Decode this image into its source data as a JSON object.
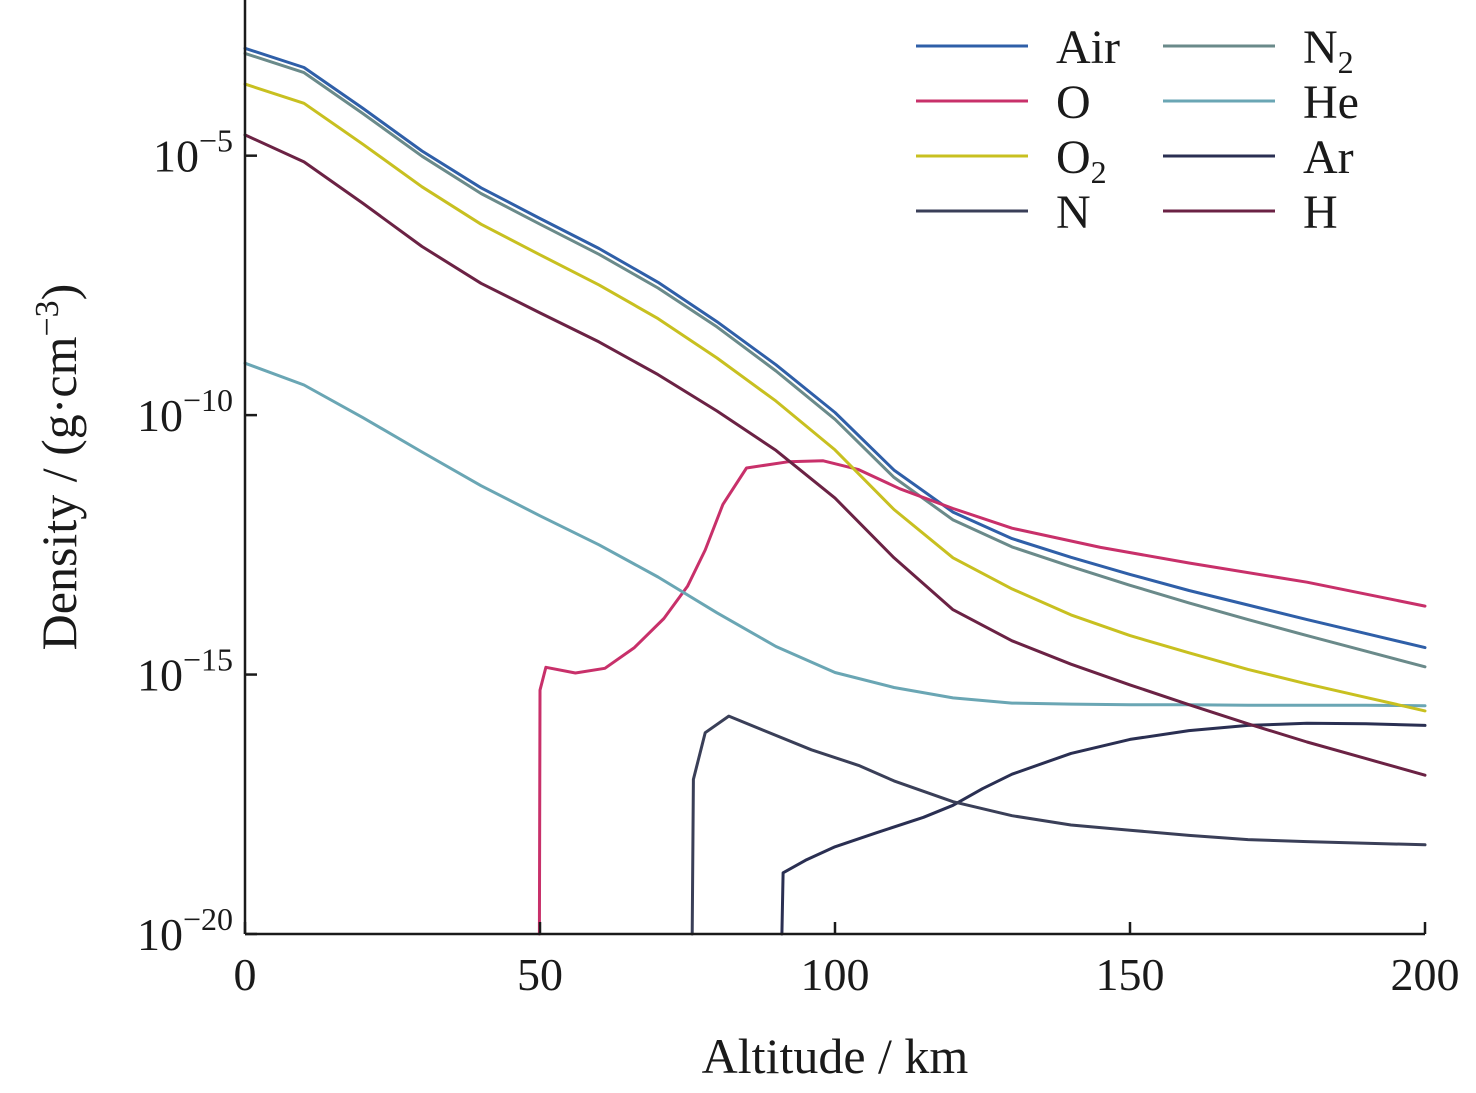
{
  "chart_data": {
    "type": "line",
    "xlabel": "Altitude / km",
    "ylabel": "Density / (g·cm⁻³)",
    "ylabel_parts": {
      "main": "Density / (g·cm",
      "sup": "−3",
      "end": ")"
    },
    "x_scale": "linear",
    "y_scale": "log",
    "xlim": [
      0,
      200
    ],
    "ylim_exponent": [
      -20,
      -2
    ],
    "x_ticks": [
      {
        "value": 0,
        "label": "0"
      },
      {
        "value": 50,
        "label": "50"
      },
      {
        "value": 100,
        "label": "100"
      },
      {
        "value": 150,
        "label": "150"
      },
      {
        "value": 200,
        "label": "200"
      }
    ],
    "y_ticks": [
      {
        "exponent": -5,
        "base": "10",
        "sup": "−5"
      },
      {
        "exponent": -10,
        "base": "10",
        "sup": "−10"
      },
      {
        "exponent": -15,
        "base": "10",
        "sup": "−15"
      },
      {
        "exponent": -20,
        "base": "10",
        "sup": "−20"
      }
    ],
    "grid": false,
    "legend_position": "top-right",
    "series": [
      {
        "name": "Air",
        "label_base": "Air",
        "label_sub": "",
        "color": "#2f5fa8",
        "points": [
          [
            0,
            -2.93
          ],
          [
            10,
            -3.3
          ],
          [
            20,
            -4.09
          ],
          [
            30,
            -4.91
          ],
          [
            40,
            -5.62
          ],
          [
            50,
            -6.21
          ],
          [
            60,
            -6.79
          ],
          [
            70,
            -7.44
          ],
          [
            80,
            -8.2
          ],
          [
            90,
            -9.03
          ],
          [
            100,
            -9.95
          ],
          [
            110,
            -11.06
          ],
          [
            120,
            -11.87
          ],
          [
            130,
            -12.38
          ],
          [
            140,
            -12.74
          ],
          [
            150,
            -13.07
          ],
          [
            160,
            -13.38
          ],
          [
            170,
            -13.66
          ],
          [
            180,
            -13.94
          ],
          [
            190,
            -14.21
          ],
          [
            200,
            -14.48
          ]
        ]
      },
      {
        "name": "N2",
        "label_base": "N",
        "label_sub": "2",
        "color": "#6a8a8a",
        "points": [
          [
            0,
            -3.03
          ],
          [
            10,
            -3.4
          ],
          [
            20,
            -4.19
          ],
          [
            30,
            -5.01
          ],
          [
            40,
            -5.73
          ],
          [
            50,
            -6.32
          ],
          [
            60,
            -6.9
          ],
          [
            70,
            -7.55
          ],
          [
            80,
            -8.3
          ],
          [
            90,
            -9.15
          ],
          [
            100,
            -10.08
          ],
          [
            110,
            -11.2
          ],
          [
            120,
            -12.02
          ],
          [
            130,
            -12.54
          ],
          [
            140,
            -12.92
          ],
          [
            150,
            -13.28
          ],
          [
            160,
            -13.62
          ],
          [
            170,
            -13.94
          ],
          [
            180,
            -14.25
          ],
          [
            190,
            -14.55
          ],
          [
            200,
            -14.85
          ]
        ]
      },
      {
        "name": "O",
        "label_base": "O",
        "label_sub": "",
        "color": "#c8306a",
        "points": [
          [
            49.9,
            -20
          ],
          [
            50,
            -15.3
          ],
          [
            51,
            -14.86
          ],
          [
            56,
            -14.97
          ],
          [
            61,
            -14.88
          ],
          [
            66,
            -14.48
          ],
          [
            71,
            -13.92
          ],
          [
            75,
            -13.3
          ],
          [
            78,
            -12.6
          ],
          [
            81,
            -11.72
          ],
          [
            85,
            -11.02
          ],
          [
            92,
            -10.9
          ],
          [
            98,
            -10.88
          ],
          [
            104,
            -11.05
          ],
          [
            111,
            -11.42
          ],
          [
            120,
            -11.8
          ],
          [
            130,
            -12.18
          ],
          [
            145,
            -12.55
          ],
          [
            160,
            -12.85
          ],
          [
            180,
            -13.22
          ],
          [
            200,
            -13.68
          ]
        ]
      },
      {
        "name": "He",
        "label_base": "He",
        "label_sub": "",
        "color": "#6aa6b4",
        "points": [
          [
            0,
            -9
          ],
          [
            10,
            -9.42
          ],
          [
            20,
            -10.05
          ],
          [
            30,
            -10.71
          ],
          [
            40,
            -11.36
          ],
          [
            50,
            -11.94
          ],
          [
            60,
            -12.5
          ],
          [
            70,
            -13.12
          ],
          [
            80,
            -13.81
          ],
          [
            90,
            -14.46
          ],
          [
            100,
            -14.96
          ],
          [
            110,
            -15.25
          ],
          [
            120,
            -15.45
          ],
          [
            130,
            -15.55
          ],
          [
            140,
            -15.57
          ],
          [
            150,
            -15.58
          ],
          [
            160,
            -15.58
          ],
          [
            170,
            -15.59
          ],
          [
            180,
            -15.59
          ],
          [
            190,
            -15.59
          ],
          [
            200,
            -15.6
          ]
        ]
      },
      {
        "name": "O2",
        "label_base": "O",
        "label_sub": "2",
        "color": "#c8c020",
        "points": [
          [
            0,
            -3.62
          ],
          [
            10,
            -3.99
          ],
          [
            20,
            -4.78
          ],
          [
            30,
            -5.6
          ],
          [
            40,
            -6.32
          ],
          [
            50,
            -6.91
          ],
          [
            60,
            -7.49
          ],
          [
            70,
            -8.14
          ],
          [
            80,
            -8.9
          ],
          [
            90,
            -9.73
          ],
          [
            100,
            -10.67
          ],
          [
            110,
            -11.82
          ],
          [
            120,
            -12.75
          ],
          [
            130,
            -13.35
          ],
          [
            140,
            -13.85
          ],
          [
            150,
            -14.25
          ],
          [
            160,
            -14.58
          ],
          [
            170,
            -14.9
          ],
          [
            180,
            -15.18
          ],
          [
            190,
            -15.44
          ],
          [
            200,
            -15.7
          ]
        ]
      },
      {
        "name": "Ar",
        "label_base": "Ar",
        "label_sub": "",
        "color": "#2a2f52",
        "points": [
          [
            91,
            -20
          ],
          [
            91.2,
            -18.82
          ],
          [
            95,
            -18.58
          ],
          [
            100,
            -18.32
          ],
          [
            107,
            -18.05
          ],
          [
            115,
            -17.75
          ],
          [
            120,
            -17.52
          ],
          [
            125,
            -17.2
          ],
          [
            130,
            -16.92
          ],
          [
            140,
            -16.52
          ],
          [
            150,
            -16.25
          ],
          [
            160,
            -16.08
          ],
          [
            170,
            -15.98
          ],
          [
            180,
            -15.94
          ],
          [
            190,
            -15.95
          ],
          [
            200,
            -15.98
          ]
        ]
      },
      {
        "name": "N",
        "label_base": "N",
        "label_sub": "",
        "color": "#3a3f58",
        "points": [
          [
            75.8,
            -20
          ],
          [
            76,
            -17.02
          ],
          [
            78,
            -16.12
          ],
          [
            82,
            -15.8
          ],
          [
            88,
            -16.08
          ],
          [
            96,
            -16.45
          ],
          [
            104,
            -16.75
          ],
          [
            110,
            -17.05
          ],
          [
            120,
            -17.45
          ],
          [
            130,
            -17.72
          ],
          [
            140,
            -17.9
          ],
          [
            150,
            -18
          ],
          [
            160,
            -18.1
          ],
          [
            170,
            -18.18
          ],
          [
            180,
            -18.22
          ],
          [
            190,
            -18.25
          ],
          [
            200,
            -18.28
          ]
        ]
      },
      {
        "name": "H",
        "label_base": "H",
        "label_sub": "",
        "color": "#6b2244",
        "points": [
          [
            0,
            -4.6
          ],
          [
            10,
            -5.12
          ],
          [
            20,
            -5.92
          ],
          [
            30,
            -6.75
          ],
          [
            40,
            -7.46
          ],
          [
            50,
            -8.03
          ],
          [
            60,
            -8.59
          ],
          [
            70,
            -9.22
          ],
          [
            80,
            -9.92
          ],
          [
            90,
            -10.68
          ],
          [
            100,
            -11.6
          ],
          [
            110,
            -12.75
          ],
          [
            120,
            -13.75
          ],
          [
            130,
            -14.35
          ],
          [
            140,
            -14.8
          ],
          [
            150,
            -15.2
          ],
          [
            160,
            -15.58
          ],
          [
            170,
            -15.95
          ],
          [
            180,
            -16.3
          ],
          [
            190,
            -16.62
          ],
          [
            200,
            -16.94
          ]
        ]
      }
    ],
    "legend_columns": [
      [
        "Air",
        "O",
        "O2",
        "N"
      ],
      [
        "N2",
        "He",
        "Ar",
        "H"
      ]
    ]
  }
}
